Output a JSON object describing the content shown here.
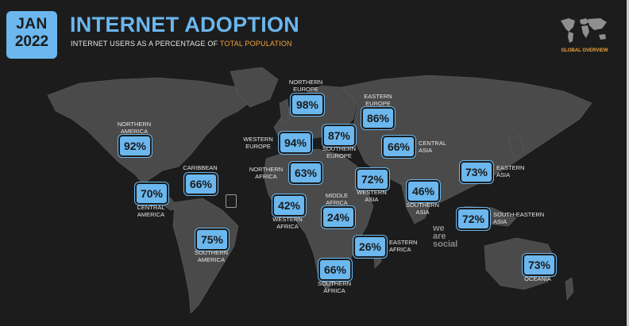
{
  "badge": {
    "month": "JAN",
    "year": "2022"
  },
  "title": "INTERNET ADOPTION",
  "subtitle": {
    "prefix": "INTERNET USERS AS A PERCENTAGE OF ",
    "highlight": "TOTAL POPULATION"
  },
  "globe_label": "GLOBAL OVERVIEW",
  "brand": {
    "l1": "we",
    "l2": "are",
    "l3": "social"
  },
  "colors": {
    "accent": "#6bb7ee",
    "highlight": "#f3a43a",
    "land": "#4a4a4a",
    "background": "#1c1c1c"
  },
  "regions": [
    {
      "id": "northern-america",
      "value": "92%",
      "label": "NORTHERN\nAMERICA"
    },
    {
      "id": "central-america",
      "value": "70%",
      "label": "CENTRAL\nAMERICA"
    },
    {
      "id": "caribbean",
      "value": "66%",
      "label": "CARIBBEAN"
    },
    {
      "id": "southern-america",
      "value": "75%",
      "label": "SOUTHERN\nAMERICA"
    },
    {
      "id": "northern-europe",
      "value": "98%",
      "label": "NORTHERN\nEUROPE"
    },
    {
      "id": "western-europe",
      "value": "94%",
      "label": "WESTERN\nEUROPE"
    },
    {
      "id": "southern-europe",
      "value": "87%",
      "label": "SOUTHERN\nEUROPE"
    },
    {
      "id": "eastern-europe",
      "value": "86%",
      "label": "EASTERN\nEUROPE"
    },
    {
      "id": "northern-africa",
      "value": "63%",
      "label": "NORTHERN\nAFRICA"
    },
    {
      "id": "western-africa",
      "value": "42%",
      "label": "WESTERN\nAFRICA"
    },
    {
      "id": "middle-africa",
      "value": "24%",
      "label": "MIDDLE\nAFRICA"
    },
    {
      "id": "eastern-africa",
      "value": "26%",
      "label": "EASTERN\nAFRICA"
    },
    {
      "id": "southern-africa",
      "value": "66%",
      "label": "SOUTHERN\nAFRICA"
    },
    {
      "id": "central-asia",
      "value": "66%",
      "label": "CENTRAL\nASIA"
    },
    {
      "id": "western-asia",
      "value": "72%",
      "label": "WESTERN\nASIA"
    },
    {
      "id": "southern-asia",
      "value": "46%",
      "label": "SOUTHERN\nASIA"
    },
    {
      "id": "eastern-asia",
      "value": "73%",
      "label": "EASTERN\nASIA"
    },
    {
      "id": "south-eastern-asia",
      "value": "72%",
      "label": "SOUTH-EASTERN\nASIA"
    },
    {
      "id": "oceania",
      "value": "73%",
      "label": "OCEANIA"
    }
  ]
}
